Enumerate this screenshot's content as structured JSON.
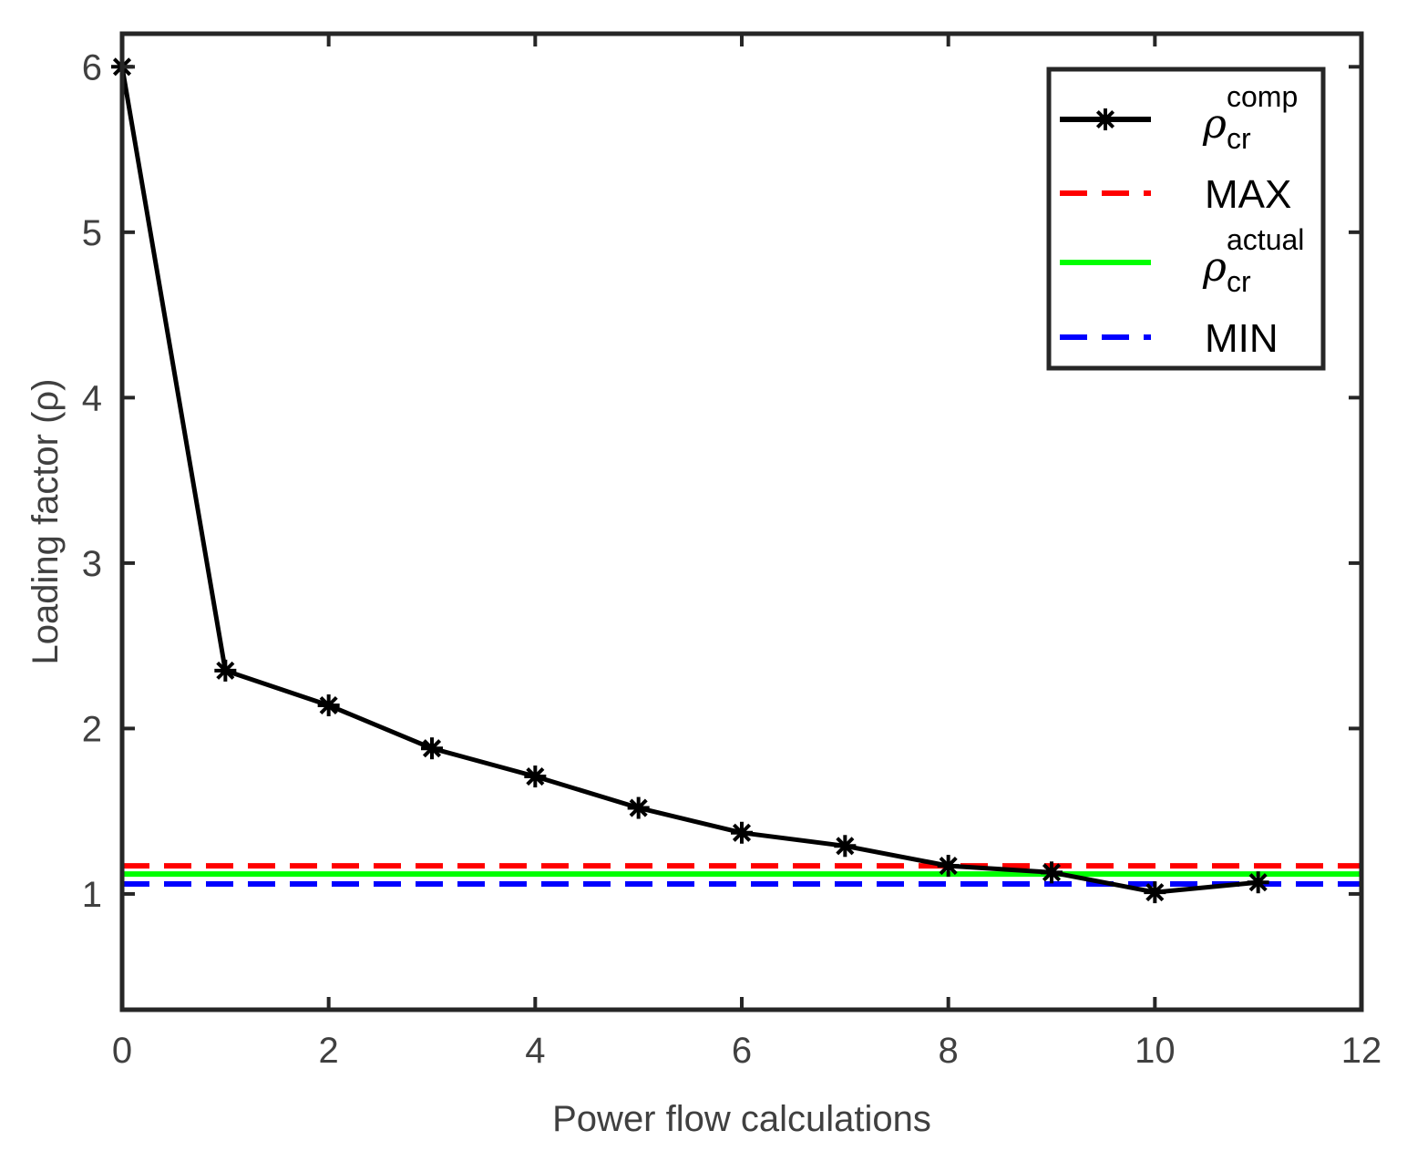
{
  "chart_data": {
    "type": "line",
    "title": "",
    "xlabel": "Power flow calculations",
    "ylabel": "Loading factor (ρ)",
    "xlim": [
      0,
      12
    ],
    "ylim": [
      0.3,
      6.2
    ],
    "xticks": [
      "0",
      "2",
      "4",
      "6",
      "8",
      "10",
      "12"
    ],
    "yticks": [
      "1",
      "2",
      "3",
      "4",
      "5",
      "6"
    ],
    "grid": false,
    "legend_position": "top-right",
    "series": [
      {
        "name": "ρ cr comp",
        "legend_symbol": "ρ",
        "legend_superscript": "comp",
        "legend_subscript": "cr",
        "style": "solid-with-star-markers",
        "color": "#000000",
        "x": [
          0,
          1,
          2,
          3,
          4,
          5,
          6,
          7,
          8,
          9,
          10,
          11
        ],
        "values": [
          6.0,
          2.35,
          2.14,
          1.88,
          1.71,
          1.52,
          1.37,
          1.29,
          1.17,
          1.13,
          1.01,
          1.07
        ]
      },
      {
        "name": "MAX",
        "legend_label": "MAX",
        "style": "dashed",
        "color": "#ff0000",
        "value": 1.17
      },
      {
        "name": "ρ cr actual",
        "legend_symbol": "ρ",
        "legend_superscript": "actual",
        "legend_subscript": "cr",
        "style": "solid",
        "color": "#00ff00",
        "value": 1.12
      },
      {
        "name": "MIN",
        "legend_label": "MIN",
        "style": "dashed",
        "color": "#0000ff",
        "value": 1.06
      }
    ]
  }
}
